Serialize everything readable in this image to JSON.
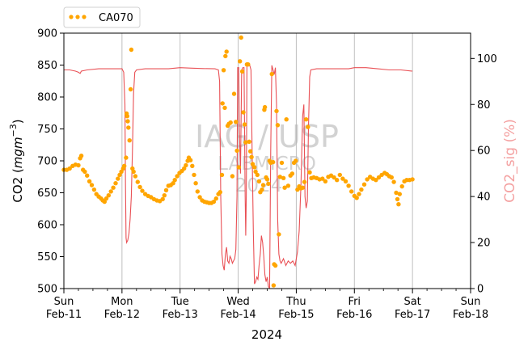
{
  "chart_data": {
    "type": "line",
    "xlabel": "2024",
    "ylabel_left": "CO2 (mgm⁻³)",
    "ylabel_right": "CO2_sig (%)",
    "ylim_left": [
      500,
      900
    ],
    "ylim_right": [
      0,
      111
    ],
    "yticks_left": [
      500,
      550,
      600,
      650,
      700,
      750,
      800,
      850,
      900
    ],
    "yticks_right": [
      0,
      20,
      40,
      60,
      80,
      100
    ],
    "x_range_days": [
      11,
      18
    ],
    "xticks": [
      {
        "day": 11,
        "weekday": "Sun",
        "date": "Feb-11"
      },
      {
        "day": 12,
        "weekday": "Mon",
        "date": "Feb-12"
      },
      {
        "day": 13,
        "weekday": "Tue",
        "date": "Feb-13"
      },
      {
        "day": 14,
        "weekday": "Wed",
        "date": "Feb-14"
      },
      {
        "day": 15,
        "weekday": "Thu",
        "date": "Feb-15"
      },
      {
        "day": 16,
        "weekday": "Fri",
        "date": "Feb-16"
      },
      {
        "day": 17,
        "weekday": "Sat",
        "date": "Feb-17"
      },
      {
        "day": 18,
        "weekday": "Sun",
        "date": "Feb-18"
      }
    ],
    "grid": "vertical-major",
    "legend_position": "top-left-outside",
    "colors": {
      "co2": "#ffa500",
      "co2_sig": "#e8474c",
      "right_axis_label": "#f4a0a0",
      "grid": "#c0c0c0"
    },
    "series": [
      {
        "name": "CA070",
        "axis": "left",
        "style": "scatter",
        "points": [
          [
            11.0,
            686
          ],
          [
            11.05,
            686
          ],
          [
            11.1,
            688
          ],
          [
            11.15,
            692
          ],
          [
            11.2,
            694
          ],
          [
            11.25,
            693
          ],
          [
            11.28,
            704
          ],
          [
            11.3,
            708
          ],
          [
            11.33,
            686
          ],
          [
            11.36,
            683
          ],
          [
            11.4,
            677
          ],
          [
            11.44,
            668
          ],
          [
            11.48,
            662
          ],
          [
            11.52,
            655
          ],
          [
            11.56,
            648
          ],
          [
            11.6,
            644
          ],
          [
            11.64,
            641
          ],
          [
            11.67,
            638
          ],
          [
            11.7,
            636
          ],
          [
            11.73,
            641
          ],
          [
            11.77,
            646
          ],
          [
            11.81,
            652
          ],
          [
            11.85,
            658
          ],
          [
            11.89,
            665
          ],
          [
            11.93,
            672
          ],
          [
            11.96,
            678
          ],
          [
            11.99,
            683
          ],
          [
            12.02,
            688
          ],
          [
            12.04,
            692
          ],
          [
            12.07,
            705
          ],
          [
            12.08,
            774
          ],
          [
            12.09,
            770
          ],
          [
            12.1,
            762
          ],
          [
            12.11,
            752
          ],
          [
            12.13,
            732
          ],
          [
            12.15,
            812
          ],
          [
            12.16,
            874
          ],
          [
            12.18,
            688
          ],
          [
            12.2,
            683
          ],
          [
            12.23,
            676
          ],
          [
            12.27,
            667
          ],
          [
            12.31,
            659
          ],
          [
            12.35,
            653
          ],
          [
            12.4,
            648
          ],
          [
            12.45,
            645
          ],
          [
            12.5,
            643
          ],
          [
            12.55,
            640
          ],
          [
            12.6,
            638
          ],
          [
            12.65,
            637
          ],
          [
            12.7,
            640
          ],
          [
            12.73,
            646
          ],
          [
            12.76,
            654
          ],
          [
            12.8,
            661
          ],
          [
            12.84,
            662
          ],
          [
            12.88,
            665
          ],
          [
            12.91,
            670
          ],
          [
            12.95,
            676
          ],
          [
            12.99,
            681
          ],
          [
            13.03,
            684
          ],
          [
            13.07,
            688
          ],
          [
            13.1,
            693
          ],
          [
            13.13,
            700
          ],
          [
            13.15,
            705
          ],
          [
            13.18,
            701
          ],
          [
            13.21,
            692
          ],
          [
            13.24,
            678
          ],
          [
            13.27,
            665
          ],
          [
            13.3,
            652
          ],
          [
            13.34,
            643
          ],
          [
            13.38,
            638
          ],
          [
            13.42,
            636
          ],
          [
            13.46,
            635
          ],
          [
            13.5,
            634
          ],
          [
            13.54,
            634
          ],
          [
            13.58,
            636
          ],
          [
            13.62,
            641
          ],
          [
            13.66,
            648
          ],
          [
            13.69,
            651
          ],
          [
            13.72,
            678
          ],
          [
            13.73,
            790
          ],
          [
            13.75,
            842
          ],
          [
            13.77,
            783
          ],
          [
            13.78,
            864
          ],
          [
            13.8,
            871
          ],
          [
            13.82,
            755
          ],
          [
            13.84,
            758
          ],
          [
            13.87,
            760
          ],
          [
            13.9,
            676
          ],
          [
            13.93,
            805
          ],
          [
            13.96,
            761
          ],
          [
            13.98,
            716
          ],
          [
            14.01,
            690
          ],
          [
            14.03,
            856
          ],
          [
            14.05,
            893
          ],
          [
            14.07,
            840
          ],
          [
            14.09,
            776
          ],
          [
            14.11,
            757
          ],
          [
            14.13,
            729
          ],
          [
            14.15,
            851
          ],
          [
            14.17,
            851
          ],
          [
            14.19,
            730
          ],
          [
            14.21,
            715
          ],
          [
            14.23,
            706
          ],
          [
            14.25,
            695
          ],
          [
            14.28,
            690
          ],
          [
            14.3,
            683
          ],
          [
            14.33,
            678
          ],
          [
            14.36,
            668
          ],
          [
            14.38,
            651
          ],
          [
            14.41,
            655
          ],
          [
            14.43,
            662
          ],
          [
            14.45,
            780
          ],
          [
            14.46,
            784
          ],
          [
            14.48,
            674
          ],
          [
            14.5,
            671
          ],
          [
            14.52,
            664
          ],
          [
            14.54,
            700
          ],
          [
            14.56,
            697
          ],
          [
            14.58,
            836
          ],
          [
            14.6,
            698
          ],
          [
            14.61,
            505
          ],
          [
            14.62,
            538
          ],
          [
            14.64,
            536
          ],
          [
            14.66,
            778
          ],
          [
            14.68,
            756
          ],
          [
            14.7,
            585
          ],
          [
            14.72,
            675
          ],
          [
            14.75,
            697
          ],
          [
            14.78,
            673
          ],
          [
            14.8,
            658
          ],
          [
            14.83,
            765
          ],
          [
            14.86,
            661
          ],
          [
            14.9,
            677
          ],
          [
            14.93,
            680
          ],
          [
            14.96,
            697
          ],
          [
            14.99,
            700
          ],
          [
            15.02,
            655
          ],
          [
            15.05,
            660
          ],
          [
            15.08,
            657
          ],
          [
            15.11,
            658
          ],
          [
            15.14,
            667
          ],
          [
            15.17,
            765
          ],
          [
            15.2,
            753
          ],
          [
            15.23,
            682
          ],
          [
            15.26,
            673
          ],
          [
            15.3,
            674
          ],
          [
            15.35,
            673
          ],
          [
            15.4,
            671
          ],
          [
            15.45,
            672
          ],
          [
            15.5,
            668
          ],
          [
            15.55,
            675
          ],
          [
            15.6,
            677
          ],
          [
            15.65,
            674
          ],
          [
            15.7,
            670
          ],
          [
            15.75,
            678
          ],
          [
            15.8,
            672
          ],
          [
            15.85,
            668
          ],
          [
            15.9,
            661
          ],
          [
            15.95,
            652
          ],
          [
            16.0,
            645
          ],
          [
            16.04,
            642
          ],
          [
            16.08,
            648
          ],
          [
            16.12,
            655
          ],
          [
            16.17,
            663
          ],
          [
            16.22,
            671
          ],
          [
            16.27,
            675
          ],
          [
            16.32,
            672
          ],
          [
            16.37,
            670
          ],
          [
            16.42,
            674
          ],
          [
            16.47,
            678
          ],
          [
            16.52,
            681
          ],
          [
            16.56,
            679
          ],
          [
            16.6,
            676
          ],
          [
            16.64,
            674
          ],
          [
            16.68,
            667
          ],
          [
            16.72,
            650
          ],
          [
            16.74,
            640
          ],
          [
            16.76,
            632
          ],
          [
            16.78,
            648
          ],
          [
            16.82,
            660
          ],
          [
            16.86,
            668
          ],
          [
            16.9,
            670
          ],
          [
            16.95,
            670
          ],
          [
            17.0,
            671
          ]
        ]
      },
      {
        "name": "",
        "axis": "right",
        "style": "line",
        "points": [
          [
            11.0,
            95
          ],
          [
            11.1,
            95
          ],
          [
            11.2,
            94.5
          ],
          [
            11.25,
            94
          ],
          [
            11.28,
            93.5
          ],
          [
            11.3,
            94.5
          ],
          [
            11.4,
            95
          ],
          [
            11.6,
            95.5
          ],
          [
            11.8,
            95.5
          ],
          [
            12.0,
            95.5
          ],
          [
            12.03,
            94
          ],
          [
            12.05,
            80
          ],
          [
            12.06,
            45
          ],
          [
            12.07,
            22
          ],
          [
            12.08,
            20
          ],
          [
            12.1,
            21
          ],
          [
            12.12,
            24
          ],
          [
            12.14,
            30
          ],
          [
            12.16,
            40
          ],
          [
            12.18,
            60
          ],
          [
            12.2,
            85
          ],
          [
            12.22,
            94
          ],
          [
            12.25,
            95
          ],
          [
            12.4,
            95.5
          ],
          [
            12.6,
            95.5
          ],
          [
            12.8,
            95.5
          ],
          [
            13.0,
            96
          ],
          [
            13.2,
            95.8
          ],
          [
            13.4,
            95.6
          ],
          [
            13.6,
            95.5
          ],
          [
            13.66,
            95
          ],
          [
            13.68,
            90
          ],
          [
            13.7,
            40
          ],
          [
            13.72,
            15
          ],
          [
            13.74,
            10
          ],
          [
            13.76,
            8
          ],
          [
            13.78,
            15
          ],
          [
            13.8,
            18
          ],
          [
            13.82,
            12
          ],
          [
            13.84,
            11
          ],
          [
            13.86,
            14
          ],
          [
            13.88,
            13
          ],
          [
            13.9,
            11
          ],
          [
            13.92,
            12
          ],
          [
            13.94,
            13
          ],
          [
            13.96,
            17
          ],
          [
            13.98,
            40
          ],
          [
            13.99,
            96
          ],
          [
            14.01,
            96
          ],
          [
            14.02,
            70
          ],
          [
            14.04,
            50
          ],
          [
            14.06,
            95
          ],
          [
            14.08,
            96
          ],
          [
            14.1,
            96
          ],
          [
            14.12,
            40
          ],
          [
            14.13,
            23
          ],
          [
            14.14,
            40
          ],
          [
            14.15,
            97
          ],
          [
            14.17,
            97
          ],
          [
            14.2,
            97
          ],
          [
            14.22,
            95
          ],
          [
            14.24,
            60
          ],
          [
            14.26,
            25
          ],
          [
            14.28,
            2
          ],
          [
            14.3,
            3
          ],
          [
            14.32,
            5
          ],
          [
            14.34,
            4
          ],
          [
            14.36,
            10
          ],
          [
            14.38,
            15
          ],
          [
            14.4,
            23
          ],
          [
            14.42,
            20
          ],
          [
            14.44,
            14
          ],
          [
            14.46,
            6
          ],
          [
            14.48,
            3
          ],
          [
            14.5,
            5
          ],
          [
            14.52,
            1
          ],
          [
            14.54,
            0
          ],
          [
            14.56,
            60
          ],
          [
            14.58,
            97
          ],
          [
            14.6,
            95
          ],
          [
            14.62,
            93
          ],
          [
            14.64,
            96
          ],
          [
            14.66,
            80
          ],
          [
            14.68,
            30
          ],
          [
            14.7,
            15
          ],
          [
            14.72,
            12
          ],
          [
            14.74,
            11
          ],
          [
            14.78,
            13
          ],
          [
            14.82,
            10
          ],
          [
            14.86,
            12
          ],
          [
            14.9,
            11
          ],
          [
            14.94,
            12
          ],
          [
            14.98,
            10
          ],
          [
            15.02,
            16
          ],
          [
            15.05,
            25
          ],
          [
            15.08,
            45
          ],
          [
            15.11,
            75
          ],
          [
            15.13,
            80
          ],
          [
            15.15,
            40
          ],
          [
            15.17,
            35
          ],
          [
            15.19,
            38
          ],
          [
            15.21,
            70
          ],
          [
            15.23,
            92
          ],
          [
            15.25,
            95
          ],
          [
            15.35,
            95.5
          ],
          [
            15.5,
            95.5
          ],
          [
            15.7,
            95.5
          ],
          [
            15.9,
            95.5
          ],
          [
            16.0,
            96
          ],
          [
            16.2,
            96
          ],
          [
            16.4,
            95.5
          ],
          [
            16.6,
            95
          ],
          [
            16.8,
            95
          ],
          [
            17.0,
            94.5
          ]
        ]
      }
    ]
  },
  "watermark": {
    "line1": "IAG / USP",
    "line2": "LABMICRO",
    "line3": "2024"
  }
}
